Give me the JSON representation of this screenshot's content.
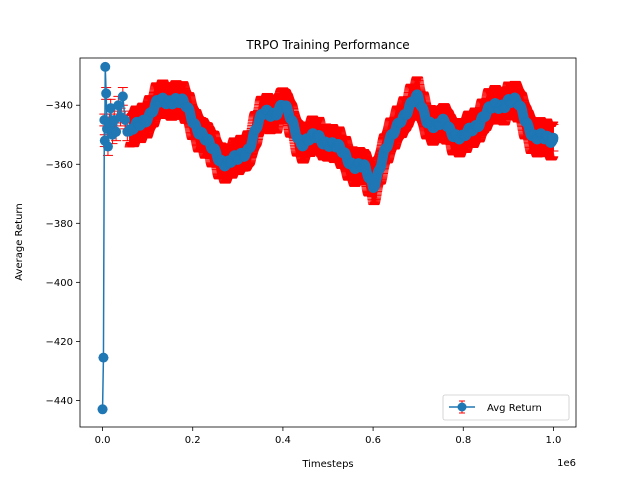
{
  "chart_data": {
    "type": "line",
    "title": "TRPO Training Performance",
    "xlabel": "Timesteps",
    "ylabel": "Average Return",
    "x_offset_label": "1e6",
    "xlim": [
      -50000,
      1050000
    ],
    "ylim": [
      -449,
      -324
    ],
    "x_scale": 1000000,
    "x_ticks": [
      0,
      200000,
      400000,
      600000,
      800000,
      1000000
    ],
    "x_tick_labels": [
      "0.0",
      "0.2",
      "0.4",
      "0.6",
      "0.8",
      "1.0"
    ],
    "y_ticks": [
      -440,
      -420,
      -400,
      -380,
      -360,
      -340
    ],
    "y_tick_labels": [
      "−440",
      "−420",
      "−400",
      "−380",
      "−360",
      "−340"
    ],
    "legend_location": "lower right",
    "grid": false,
    "colors": {
      "line": "#1f77b4",
      "errorbar": "#ff0000"
    },
    "series": [
      {
        "name": "Avg Return",
        "early_points": [
          {
            "x": 0,
            "y": -443,
            "err": 0
          },
          {
            "x": 2000,
            "y": -425.5,
            "err": 0
          },
          {
            "x": 4000,
            "y": -345,
            "err": 2
          },
          {
            "x": 5000,
            "y": -352,
            "err": 2
          },
          {
            "x": 6000,
            "y": -327,
            "err": 0
          },
          {
            "x": 8000,
            "y": -336,
            "err": 2
          },
          {
            "x": 10000,
            "y": -348,
            "err": 3
          },
          {
            "x": 12000,
            "y": -354,
            "err": 3
          },
          {
            "x": 15000,
            "y": -346,
            "err": 3
          },
          {
            "x": 18000,
            "y": -341,
            "err": 3
          },
          {
            "x": 22000,
            "y": -350,
            "err": 3
          },
          {
            "x": 26000,
            "y": -345,
            "err": 3
          },
          {
            "x": 30000,
            "y": -349,
            "err": 3
          },
          {
            "x": 35000,
            "y": -340,
            "err": 3
          },
          {
            "x": 40000,
            "y": -344,
            "err": 3
          },
          {
            "x": 45000,
            "y": -337,
            "err": 3
          },
          {
            "x": 50000,
            "y": -345,
            "err": 3
          },
          {
            "x": 55000,
            "y": -349,
            "err": 3
          }
        ],
        "trend_x": [
          60000,
          80000,
          100000,
          120000,
          140000,
          160000,
          180000,
          200000,
          220000,
          240000,
          260000,
          280000,
          300000,
          320000,
          340000,
          360000,
          380000,
          400000,
          420000,
          440000,
          460000,
          480000,
          500000,
          520000,
          540000,
          560000,
          580000,
          600000,
          620000,
          640000,
          660000,
          680000,
          700000,
          720000,
          740000,
          760000,
          780000,
          800000,
          820000,
          840000,
          860000,
          880000,
          900000,
          920000,
          940000,
          960000,
          980000,
          1000000
        ],
        "trend_y": [
          -350,
          -347,
          -343,
          -340,
          -339,
          -337,
          -340,
          -345,
          -349,
          -355,
          -358,
          -359,
          -359,
          -355,
          -348,
          -343,
          -342,
          -340,
          -346,
          -352,
          -352,
          -351,
          -352,
          -355,
          -357,
          -360,
          -362,
          -367,
          -358,
          -352,
          -344,
          -341,
          -338,
          -344,
          -348,
          -346,
          -349,
          -352,
          -348,
          -344,
          -342,
          -340,
          -338,
          -340,
          -345,
          -351,
          -352,
          -351
        ],
        "err": 4.5
      }
    ]
  }
}
